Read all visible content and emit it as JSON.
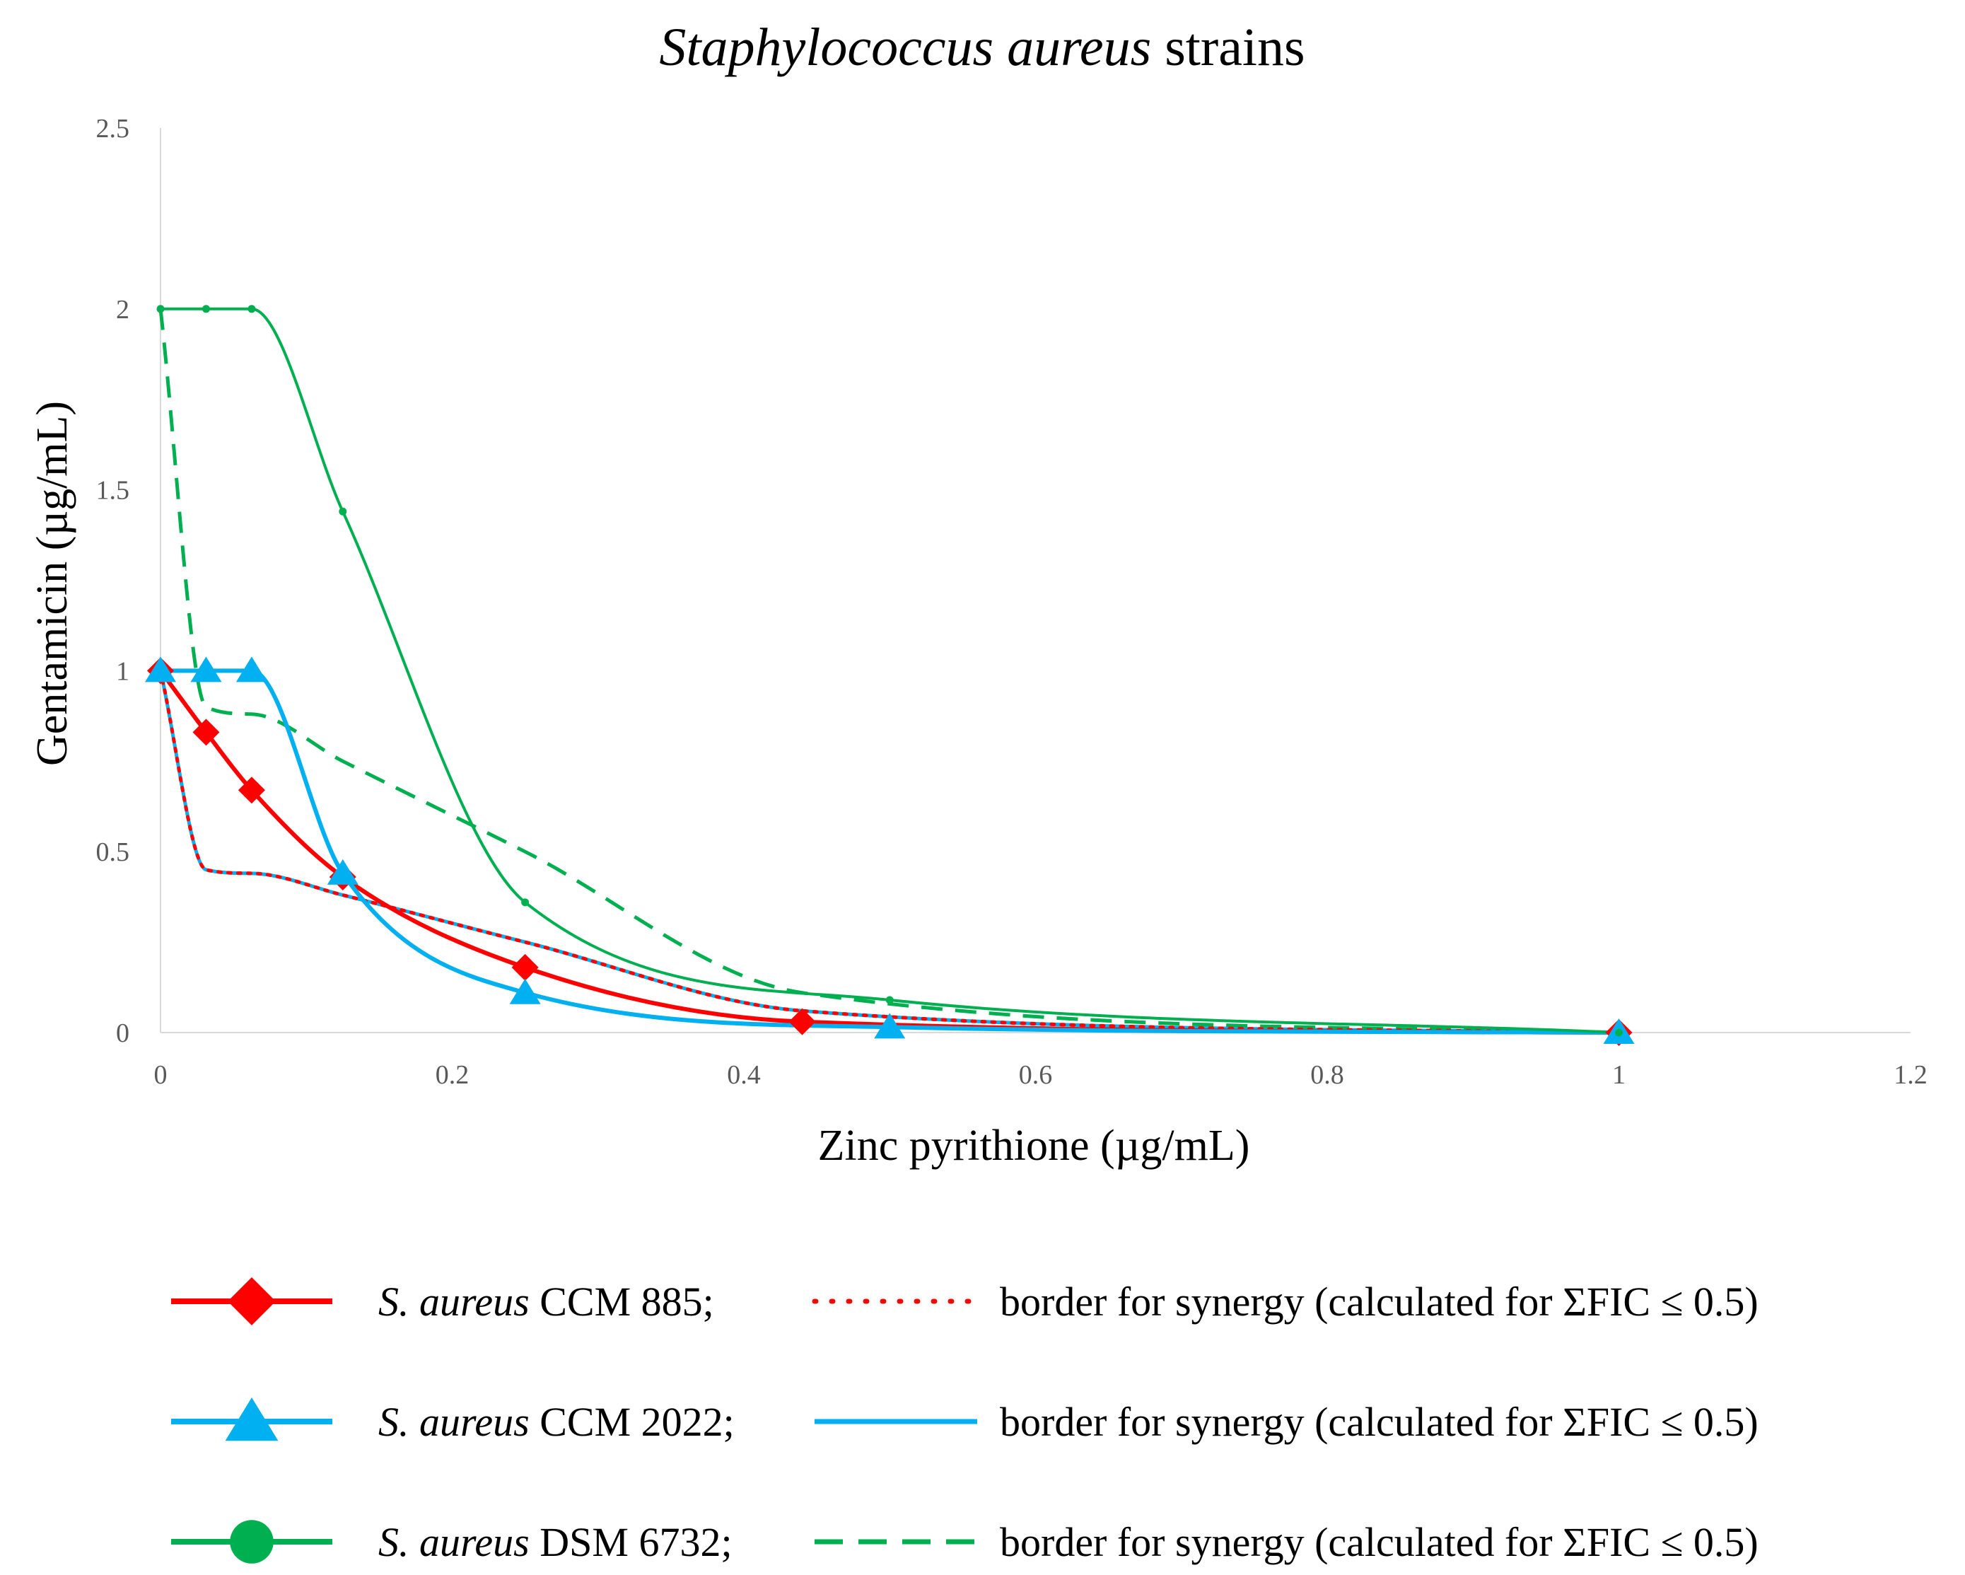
{
  "chart_data": {
    "type": "line",
    "title_italic": "Staphylococcus aureus",
    "title_rest": " strains",
    "xlabel": "Zinc pyrithione (µg/mL)",
    "ylabel": "Gentamicin (µg/mL)",
    "xlim": [
      0,
      1.2
    ],
    "ylim": [
      0,
      2.5
    ],
    "xticks": [
      0,
      0.2,
      0.4,
      0.6,
      0.8,
      1,
      1.2
    ],
    "xtick_labels": [
      "0",
      "0.2",
      "0.4",
      "0.6",
      "0.8",
      "1",
      "1.2"
    ],
    "yticks": [
      0,
      0.5,
      1,
      1.5,
      2,
      2.5
    ],
    "ytick_labels": [
      "0",
      "0.5",
      "1",
      "1.5",
      "2",
      "2.5"
    ],
    "grid": false,
    "legend_position": "bottom",
    "series": [
      {
        "id": "ccm885",
        "name_italic": "S. aureus",
        "name_rest": " CCM 885;",
        "marker": "diamond",
        "color": "#ff0000",
        "x": [
          0,
          0.03125,
          0.0625,
          0.125,
          0.25,
          0.44,
          1
        ],
        "y": [
          1,
          0.83,
          0.67,
          0.43,
          0.18,
          0.03,
          0
        ]
      },
      {
        "id": "ccm2022",
        "name_italic": "S. aureus",
        "name_rest": " CCM 2022;",
        "marker": "triangle",
        "color": "#00b0f0",
        "x": [
          0,
          0.03125,
          0.0625,
          0.125,
          0.25,
          0.5,
          1
        ],
        "y": [
          1,
          1,
          1,
          0.44,
          0.11,
          0.015,
          0
        ]
      },
      {
        "id": "dsm6732",
        "name_italic": "S. aureus",
        "name_rest": " DSM 6732;",
        "marker": "circle",
        "color": "#00b050",
        "x": [
          0,
          0.03125,
          0.0625,
          0.125,
          0.25,
          0.5,
          1
        ],
        "y": [
          2,
          2,
          2,
          1.44,
          0.36,
          0.09,
          0
        ]
      }
    ],
    "synergy_borders": [
      {
        "id": "border-ccm885",
        "for": "ccm885",
        "label": "border for synergy (calculated for ΣFIC ≤ 0.5)",
        "style": "dotted",
        "color": "#ff0000",
        "x": [
          0,
          0.03125,
          0.0625,
          0.125,
          0.25,
          0.44,
          1
        ],
        "y": [
          1,
          0.45,
          0.44,
          0.38,
          0.25,
          0.06,
          0
        ]
      },
      {
        "id": "border-ccm2022",
        "for": "ccm2022",
        "label": "border for synergy (calculated for ΣFIC ≤ 0.5)",
        "style": "solid",
        "color": "#00b0f0",
        "x": [
          0,
          0.03125,
          0.0625,
          0.125,
          0.25,
          0.44,
          1
        ],
        "y": [
          1,
          0.45,
          0.44,
          0.38,
          0.25,
          0.06,
          0
        ]
      },
      {
        "id": "border-dsm6732",
        "for": "dsm6732",
        "label": "border for synergy (calculated for ΣFIC ≤ 0.5)",
        "style": "dashed",
        "color": "#00b050",
        "x": [
          0,
          0.03125,
          0.0625,
          0.125,
          0.25,
          0.44,
          1
        ],
        "y": [
          2,
          0.9,
          0.88,
          0.75,
          0.5,
          0.11,
          0
        ]
      }
    ]
  }
}
